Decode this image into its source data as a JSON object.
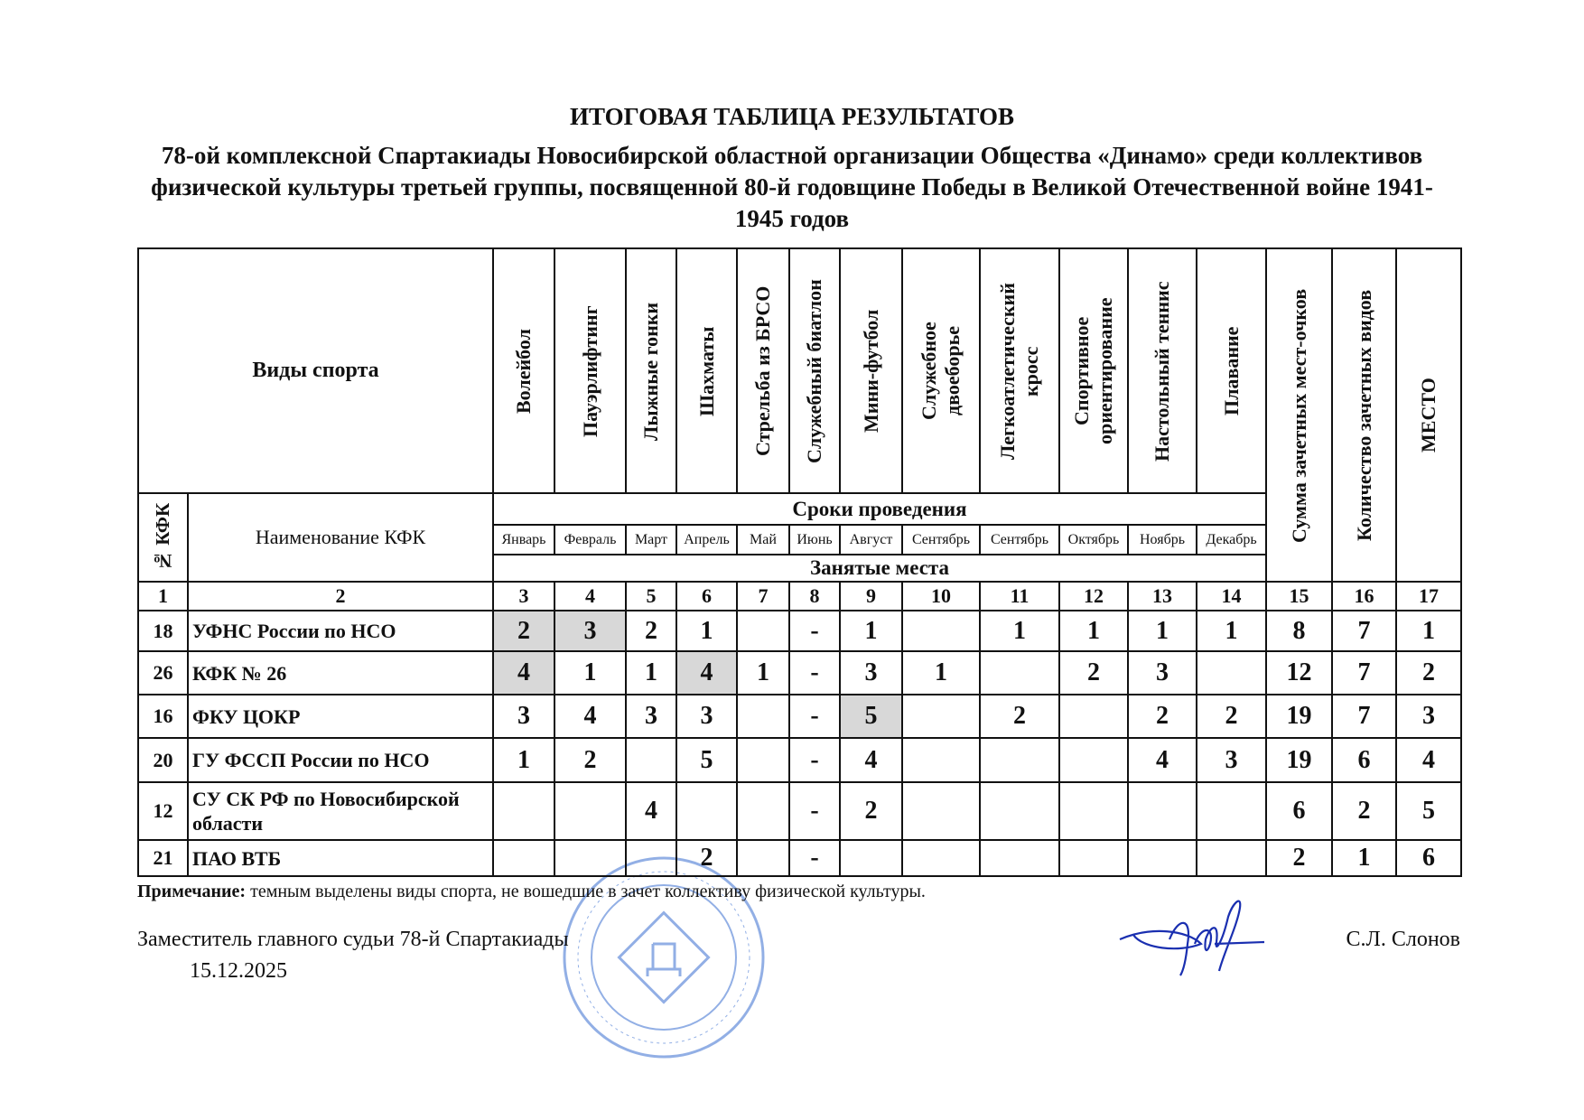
{
  "title": {
    "line1": "ИТОГОВАЯ ТАБЛИЦА РЕЗУЛЬТАТОВ",
    "line2": "78-ой комплексной Спартакиады Новосибирской областной организации Общества «Динамо» среди коллективов физической культуры третьей группы, посвященной 80-й годовщине Победы в Великой Отечественной войне 1941-1945 годов"
  },
  "header": {
    "sports_label": "Виды спорта",
    "kfk_no": "№ КФК",
    "kfk_name": "Наименование КФК",
    "schedule": "Сроки проведения",
    "places": "Занятые места",
    "sports": [
      "Волейбол",
      "Пауэрлифтинг",
      "Лыжные гонки",
      "Шахматы",
      "Стрельба из БРСО",
      "Служебный биатлон",
      "Мини-футбол",
      "Служебное\nдвоеборье",
      "Легкоатлетический\nкросс",
      "Спортивное\nориентирование",
      "Настольный теннис",
      "Плавание"
    ],
    "months": [
      "Январь",
      "Февраль",
      "Март",
      "Апрель",
      "Май",
      "Июнь",
      "Август",
      "Сентябрь",
      "Сентябрь",
      "Октябрь",
      "Ноябрь",
      "Декабрь"
    ],
    "sum": "Сумма зачетных мест-очков",
    "count": "Количество  зачетных видов",
    "place": "МЕСТО",
    "col_numbers": [
      "1",
      "2",
      "3",
      "4",
      "5",
      "6",
      "7",
      "8",
      "9",
      "10",
      "11",
      "12",
      "13",
      "14",
      "15",
      "16",
      "17"
    ]
  },
  "rows": [
    {
      "id": "18",
      "name": "УФНС России по НСО",
      "cells": [
        "2",
        "3",
        "2",
        "1",
        "",
        "-",
        "1",
        "",
        "1",
        "1",
        "1",
        "1"
      ],
      "shaded": [
        0,
        1
      ],
      "sum": "8",
      "count": "7",
      "place": "1"
    },
    {
      "id": "26",
      "name": "КФК № 26",
      "cells": [
        "4",
        "1",
        "1",
        "4",
        "1",
        "-",
        "3",
        "1",
        "",
        "2",
        "3",
        ""
      ],
      "shaded": [
        0,
        3
      ],
      "sum": "12",
      "count": "7",
      "place": "2"
    },
    {
      "id": "16",
      "name": "ФКУ ЦОКР",
      "cells": [
        "3",
        "4",
        "3",
        "3",
        "",
        "-",
        "5",
        "",
        "2",
        "",
        "2",
        "2"
      ],
      "shaded": [
        6
      ],
      "sum": "19",
      "count": "7",
      "place": "3"
    },
    {
      "id": "20",
      "name": "ГУ ФССП России по НСО",
      "cells": [
        "1",
        "2",
        "",
        "5",
        "",
        "-",
        "4",
        "",
        "",
        "",
        "4",
        "3"
      ],
      "shaded": [],
      "sum": "19",
      "count": "6",
      "place": "4"
    },
    {
      "id": "12",
      "name": "СУ СК РФ по Новосибирской области",
      "cells": [
        "",
        "",
        "4",
        "",
        "",
        "-",
        "2",
        "",
        "",
        "",
        "",
        ""
      ],
      "shaded": [],
      "sum": "6",
      "count": "2",
      "place": "5"
    },
    {
      "id": "21",
      "name": "ПАО ВТБ",
      "cells": [
        "",
        "",
        "",
        "2",
        "",
        "-",
        "",
        "",
        "",
        "",
        "",
        ""
      ],
      "shaded": [],
      "sum": "2",
      "count": "1",
      "place": "6"
    }
  ],
  "note": {
    "label": "Примечание:",
    "text": " темным выделены виды спорта, не вошедшие в зачет коллективу физической культуры."
  },
  "footer": {
    "position": "Заместитель главного судьи 78-й Спартакиады",
    "date": "15.12.2025",
    "signer": "С.Л. Слонов"
  },
  "stamp_text": "Всероссийское физкультурно-спортивное общество «Динамо» Новосибирская областная организация",
  "colors": {
    "shaded": "#d8d8d8",
    "stamp": "#3a6fd0",
    "signature": "#1a2fb0"
  }
}
